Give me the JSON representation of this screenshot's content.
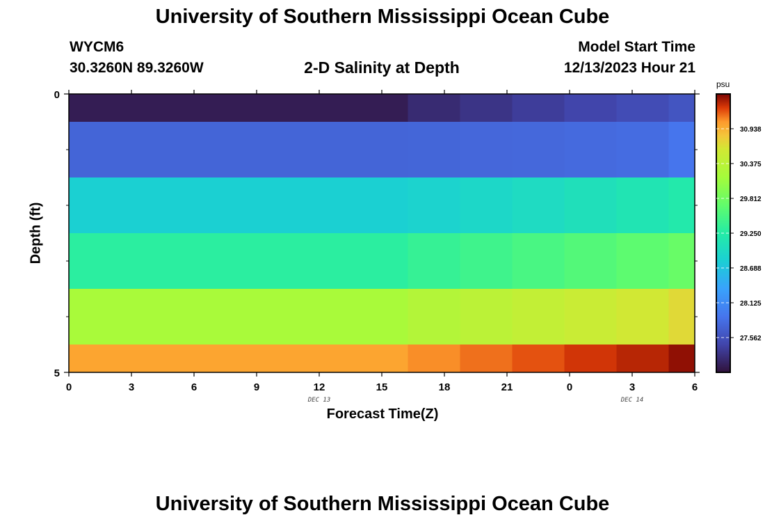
{
  "header": {
    "title": "University of Southern Mississippi Ocean Cube",
    "station": "WYCM6",
    "coords": "30.3260N  89.3260W",
    "subtitle": "2-D Salinity at Depth",
    "model_start_label": "Model Start Time",
    "model_start_value": "12/13/2023 Hour 21"
  },
  "footer": {
    "title": "University of Southern Mississippi Ocean Cube"
  },
  "chart_data": {
    "type": "heatmap",
    "title": "2-D Salinity at Depth",
    "xlabel": "Forecast Time(Z)",
    "ylabel": "Depth (ft)",
    "x_hours": [
      0,
      3,
      6,
      9,
      12,
      15,
      18,
      21,
      24,
      27,
      30
    ],
    "x_tick_labels": [
      "0",
      "3",
      "6",
      "9",
      "12",
      "15",
      "18",
      "21",
      "0",
      "3",
      "6"
    ],
    "x_date_labels": [
      {
        "hour": 12,
        "text": "DEC 13"
      },
      {
        "hour": 27,
        "text": "DEC 14"
      }
    ],
    "xlim": [
      0,
      30
    ],
    "ylim": [
      0,
      5
    ],
    "y_tick_labels": [
      "0",
      "5"
    ],
    "y_minor_ticks": [
      1,
      2,
      3,
      4
    ],
    "depth_bands": [
      [
        0,
        0.5
      ],
      [
        0.5,
        1.5
      ],
      [
        1.5,
        2.5
      ],
      [
        2.5,
        3.5
      ],
      [
        3.5,
        4.5
      ],
      [
        4.5,
        5
      ]
    ],
    "time_columns": [
      [
        0,
        16.25
      ],
      [
        16.25,
        18.75
      ],
      [
        18.75,
        21.25
      ],
      [
        21.25,
        23.75
      ],
      [
        23.75,
        26.25
      ],
      [
        26.25,
        28.75
      ],
      [
        28.75,
        30
      ]
    ],
    "values": [
      [
        27.1,
        27.22,
        27.3,
        27.38,
        27.45,
        27.52,
        27.6
      ],
      [
        27.75,
        27.76,
        27.77,
        27.78,
        27.8,
        27.82,
        27.9
      ],
      [
        28.82,
        28.86,
        28.92,
        28.98,
        29.05,
        29.12,
        29.2
      ],
      [
        29.3,
        29.38,
        29.45,
        29.52,
        29.6,
        29.67,
        29.75
      ],
      [
        30.2,
        30.3,
        30.38,
        30.45,
        30.52,
        30.6,
        30.7
      ],
      [
        31.0,
        31.08,
        31.15,
        31.22,
        31.3,
        31.36,
        31.45
      ]
    ],
    "colorbar": {
      "unit": "psu",
      "range": [
        27.0,
        31.5
      ],
      "ticks": [
        27.562,
        28.125,
        28.688,
        29.25,
        29.812,
        30.375,
        30.938
      ],
      "tick_labels": [
        "27.562",
        "28.125",
        "28.688",
        "29.250",
        "29.812",
        "30.375",
        "30.938"
      ]
    }
  }
}
